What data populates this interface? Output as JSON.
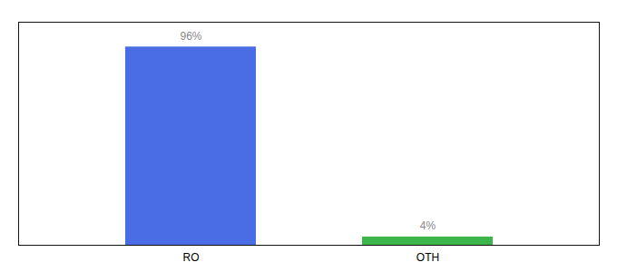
{
  "chart_data": {
    "type": "bar",
    "categories": [
      "RO",
      "OTH"
    ],
    "values": [
      96,
      4
    ],
    "value_labels": [
      "96%",
      "4%"
    ],
    "colors": [
      "#4a6de5",
      "#3cb54a"
    ],
    "ylim": [
      0,
      108
    ],
    "yticks": [],
    "tick_labels": "x",
    "data_labels": true,
    "grid": false
  }
}
